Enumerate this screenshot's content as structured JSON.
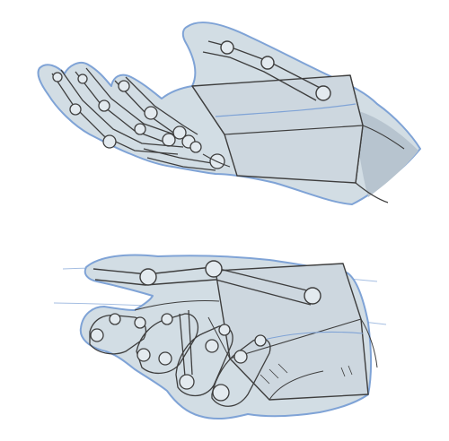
{
  "colors": {
    "background": "#ffffff",
    "skin_fill": "#d2dde4",
    "outline_blue": "#7fa3d6",
    "pencil": "#3e3e3e",
    "palm_box_fill": "#cdd7df",
    "shadow": "#a9b6c2"
  },
  "figures": [
    {
      "name": "upper-hand-sketch"
    },
    {
      "name": "lower-hand-sketch"
    }
  ]
}
